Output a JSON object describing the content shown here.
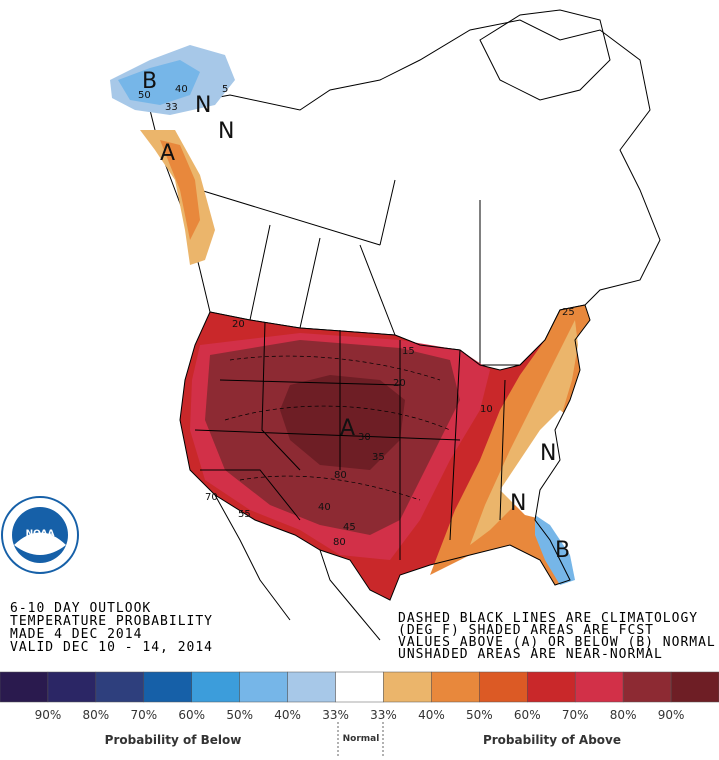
{
  "header": {
    "lines": [
      "6-10 DAY OUTLOOK",
      "TEMPERATURE PROBABILITY",
      "MADE  4 DEC 2014",
      "VALID  DEC 10 - 14, 2014"
    ]
  },
  "notes": [
    "DASHED BLACK LINES ARE CLIMATOLOGY",
    "(DEG F) SHADED AREAS ARE FCST",
    "VALUES ABOVE (A) OR BELOW (B) NORMAL",
    "UNSHADED AREAS ARE NEAR-NORMAL"
  ],
  "logo": "NOAA",
  "map_labels": [
    "A",
    "A",
    "B",
    "B",
    "N",
    "N",
    "N",
    "N",
    "30",
    "35",
    "40",
    "45",
    "80",
    "80",
    "70",
    "55",
    "20",
    "15",
    "10",
    "25",
    "20",
    "50",
    "33",
    "40",
    "5"
  ],
  "legend": {
    "colors": [
      "#2a1a4e",
      "#2b2665",
      "#2e3f7d",
      "#1660a8",
      "#3c9ddb",
      "#76b6e8",
      "#a7c8e8",
      "#ffffff",
      "#ebb56b",
      "#e8883c",
      "#dc5a25",
      "#c9282a",
      "#d23048",
      "#8d2a33",
      "#6e1e25"
    ],
    "labels": [
      "90%",
      "80%",
      "70%",
      "60%",
      "50%",
      "40%",
      "33%",
      "33%",
      "40%",
      "50%",
      "60%",
      "70%",
      "80%",
      "90%"
    ],
    "below": "Probability of Below",
    "normal": "Normal",
    "above": "Probability of Above"
  }
}
